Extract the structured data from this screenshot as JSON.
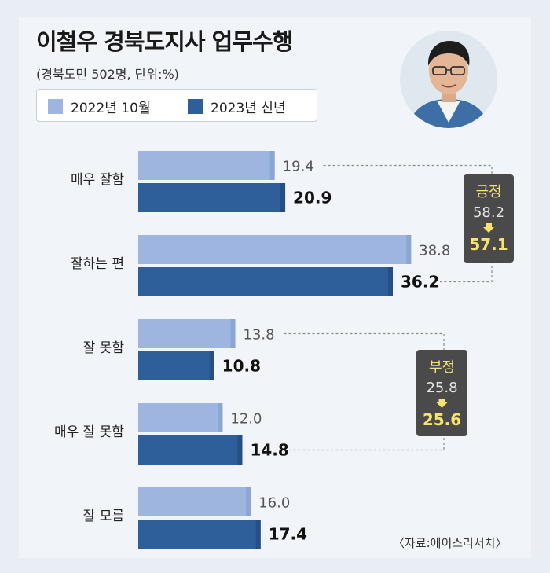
{
  "title": "이철우 경북도지사 업무수행",
  "subtitle": "(경북도민 502명, 단위:%)",
  "source": "〈자료:에이스리서치〉",
  "colors": {
    "series_2022": "#9eb6df",
    "series_2023": "#2f5f9a",
    "callout_bg": "#4a4a4a",
    "callout_title": "#f3e47a",
    "callout_value": "#e6e6e6",
    "callout_emph": "#f7e46e"
  },
  "chart_data": {
    "type": "bar",
    "orientation": "horizontal",
    "categories": [
      "매우 잘함",
      "잘하는 편",
      "잘 못함",
      "매우 잘 못함",
      "잘 모름"
    ],
    "series": [
      {
        "name": "2022년 10월",
        "values": [
          19.4,
          38.8,
          13.8,
          12.0,
          16.0
        ]
      },
      {
        "name": "2023년 신년",
        "values": [
          20.9,
          36.2,
          10.8,
          14.8,
          17.4
        ]
      }
    ],
    "data_labels": {
      "2022년 10월": [
        "19.4",
        "38.8",
        "13.8",
        "12.0",
        "16.0"
      ],
      "2023년 신년": [
        "20.9",
        "36.2",
        "10.8",
        "14.8",
        "17.4"
      ]
    },
    "legend_position": "top-left",
    "grid": false,
    "annotations": [
      {
        "label": "긍정",
        "from": "58.2",
        "to": "57.1",
        "groups": [
          "매우 잘함",
          "잘하는 편"
        ]
      },
      {
        "label": "부정",
        "from": "25.8",
        "to": "25.6",
        "groups": [
          "잘 못함",
          "매우 잘 못함"
        ]
      }
    ]
  },
  "photo": {
    "icon": "person-portrait-icon"
  }
}
